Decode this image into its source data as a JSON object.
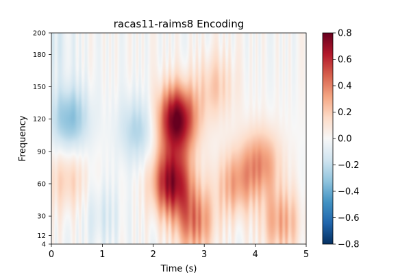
{
  "chart_data": {
    "type": "heatmap",
    "title": "racas11-raims8 Encoding",
    "xlabel": "Time (s)",
    "ylabel": "Frequency",
    "xlim": [
      0,
      5
    ],
    "ylim": [
      4,
      200
    ],
    "x_ticks": [
      0,
      1,
      2,
      3,
      4,
      5
    ],
    "x_tick_labels": [
      "0",
      "1",
      "2",
      "3",
      "4",
      "5"
    ],
    "y_ticks": [
      4,
      12,
      30,
      60,
      90,
      120,
      150,
      180,
      200
    ],
    "y_tick_labels": [
      "4",
      "12",
      "30",
      "60",
      "90",
      "120",
      "150",
      "180",
      "200"
    ],
    "colorbar": {
      "colormap": "RdBu_r",
      "vmin": -0.8,
      "vmax": 0.8,
      "ticks": [
        0.8,
        0.6,
        0.4,
        0.2,
        0.0,
        -0.2,
        -0.4,
        -0.6,
        -0.8
      ],
      "tick_labels": [
        "0.8",
        "0.6",
        "0.4",
        "0.2",
        "0.0",
        "−0.2",
        "−0.4",
        "−0.6",
        "−0.8"
      ]
    },
    "regions": [
      {
        "t": 0.35,
        "f": 120,
        "value": -0.35
      },
      {
        "t": 1.7,
        "f": 110,
        "value": -0.25
      },
      {
        "t": 2.45,
        "f": 120,
        "value": 0.8
      },
      {
        "t": 2.35,
        "f": 62,
        "value": 0.7
      },
      {
        "t": 2.8,
        "f": 25,
        "value": 0.4
      },
      {
        "t": 3.2,
        "f": 150,
        "value": 0.2
      },
      {
        "t": 3.6,
        "f": 60,
        "value": 0.3
      },
      {
        "t": 4.1,
        "f": 80,
        "value": 0.35
      },
      {
        "t": 4.5,
        "f": 25,
        "value": 0.3
      },
      {
        "t": 1.0,
        "f": 30,
        "value": -0.12
      },
      {
        "t": 0.3,
        "f": 65,
        "value": 0.2
      },
      {
        "t": 0.1,
        "f": 190,
        "value": -0.1
      }
    ]
  }
}
